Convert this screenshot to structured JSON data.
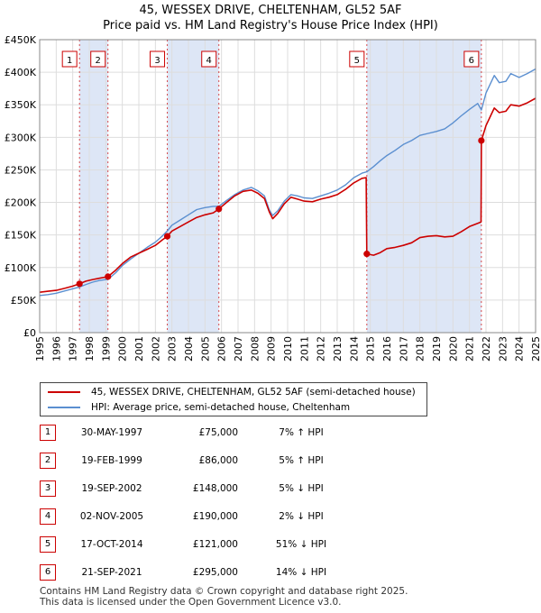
{
  "title_line1": "45, WESSEX DRIVE, CHELTENHAM, GL52 5AF",
  "title_line2": "Price paid vs. HM Land Registry's House Price Index (HPI)",
  "colors": {
    "property": "#cc0000",
    "hpi": "#5b8fd0",
    "shade": "#dde6f6",
    "grid": "#dddddd",
    "marker_border": "#cc0000"
  },
  "legend": {
    "property_label": "45, WESSEX DRIVE, CHELTENHAM, GL52 5AF (semi-detached house)",
    "hpi_label": "HPI: Average price, semi-detached house, Cheltenham"
  },
  "sales": [
    {
      "num": "1",
      "date": "30-MAY-1997",
      "price": "£75,000",
      "hpi": "7% ↑ HPI"
    },
    {
      "num": "2",
      "date": "19-FEB-1999",
      "price": "£86,000",
      "hpi": "5% ↑ HPI"
    },
    {
      "num": "3",
      "date": "19-SEP-2002",
      "price": "£148,000",
      "hpi": "5% ↓ HPI"
    },
    {
      "num": "4",
      "date": "02-NOV-2005",
      "price": "£190,000",
      "hpi": "2% ↓ HPI"
    },
    {
      "num": "5",
      "date": "17-OCT-2014",
      "price": "£121,000",
      "hpi": "51% ↓ HPI"
    },
    {
      "num": "6",
      "date": "21-SEP-2021",
      "price": "£295,000",
      "hpi": "14% ↓ HPI"
    }
  ],
  "footer_line1": "Contains HM Land Registry data © Crown copyright and database right 2025.",
  "footer_line2": "This data is licensed under the Open Government Licence v3.0.",
  "chart_data": {
    "type": "line",
    "title": "45, WESSEX DRIVE, CHELTENHAM, GL52 5AF",
    "subtitle": "Price paid vs. HM Land Registry's House Price Index (HPI)",
    "xlim": [
      1995,
      2025
    ],
    "ylim": [
      0,
      450000
    ],
    "grid": true,
    "legend_position": "below",
    "x_ticks": [
      "1995",
      "1996",
      "1997",
      "1998",
      "1999",
      "2000",
      "2001",
      "2002",
      "2003",
      "2004",
      "2005",
      "2006",
      "2007",
      "2008",
      "2009",
      "2010",
      "2011",
      "2012",
      "2013",
      "2014",
      "2015",
      "2016",
      "2017",
      "2018",
      "2019",
      "2020",
      "2021",
      "2022",
      "2023",
      "2024",
      "2025"
    ],
    "y_ticks": [
      {
        "value": 0,
        "label": "£0"
      },
      {
        "value": 50000,
        "label": "£50K"
      },
      {
        "value": 100000,
        "label": "£100K"
      },
      {
        "value": 150000,
        "label": "£150K"
      },
      {
        "value": 200000,
        "label": "£200K"
      },
      {
        "value": 250000,
        "label": "£250K"
      },
      {
        "value": 300000,
        "label": "£300K"
      },
      {
        "value": 350000,
        "label": "£350K"
      },
      {
        "value": 400000,
        "label": "£400K"
      },
      {
        "value": 450000,
        "label": "£450K"
      }
    ],
    "shaded_ranges": [
      [
        1997.41,
        1999.13
      ],
      [
        2002.72,
        2005.84
      ],
      [
        2014.79,
        2021.72
      ]
    ],
    "sale_markers": [
      {
        "label": "1",
        "x": 1997.41,
        "y": 75000
      },
      {
        "label": "2",
        "x": 1999.13,
        "y": 86000
      },
      {
        "label": "3",
        "x": 2002.72,
        "y": 148000
      },
      {
        "label": "4",
        "x": 2005.84,
        "y": 190000
      },
      {
        "label": "5",
        "x": 2014.79,
        "y": 121000
      },
      {
        "label": "6",
        "x": 2021.72,
        "y": 295000
      }
    ],
    "series": [
      {
        "name": "45, WESSEX DRIVE, CHELTENHAM, GL52 5AF (semi-detached house)",
        "points": [
          [
            1995.0,
            62000
          ],
          [
            1995.5,
            63500
          ],
          [
            1996.0,
            65000
          ],
          [
            1996.5,
            68000
          ],
          [
            1997.0,
            71500
          ],
          [
            1997.41,
            75000
          ],
          [
            1997.8,
            79000
          ],
          [
            1998.2,
            81500
          ],
          [
            1998.6,
            83500
          ],
          [
            1999.13,
            86000
          ],
          [
            1999.6,
            96000
          ],
          [
            2000.0,
            106000
          ],
          [
            2000.5,
            116000
          ],
          [
            2001.0,
            122000
          ],
          [
            2001.5,
            128000
          ],
          [
            2002.0,
            134000
          ],
          [
            2002.4,
            142000
          ],
          [
            2002.72,
            148000
          ],
          [
            2003.0,
            156000
          ],
          [
            2003.5,
            163000
          ],
          [
            2004.0,
            170000
          ],
          [
            2004.5,
            177000
          ],
          [
            2005.0,
            181000
          ],
          [
            2005.5,
            184000
          ],
          [
            2005.84,
            190000
          ],
          [
            2006.3,
            200000
          ],
          [
            2006.8,
            210000
          ],
          [
            2007.3,
            217000
          ],
          [
            2007.8,
            219000
          ],
          [
            2008.2,
            214000
          ],
          [
            2008.6,
            206000
          ],
          [
            2008.9,
            185000
          ],
          [
            2009.1,
            175000
          ],
          [
            2009.4,
            183000
          ],
          [
            2009.8,
            198000
          ],
          [
            2010.2,
            208000
          ],
          [
            2010.6,
            205000
          ],
          [
            2011.0,
            202000
          ],
          [
            2011.5,
            201000
          ],
          [
            2012.0,
            205000
          ],
          [
            2012.5,
            208000
          ],
          [
            2013.0,
            212000
          ],
          [
            2013.5,
            220000
          ],
          [
            2014.0,
            230000
          ],
          [
            2014.5,
            237000
          ],
          [
            2014.75,
            238000
          ],
          [
            2014.79,
            121000
          ],
          [
            2015.2,
            119000
          ],
          [
            2015.6,
            123000
          ],
          [
            2016.0,
            129000
          ],
          [
            2016.5,
            131000
          ],
          [
            2017.0,
            134000
          ],
          [
            2017.5,
            138000
          ],
          [
            2018.0,
            146000
          ],
          [
            2018.5,
            148000
          ],
          [
            2019.0,
            149000
          ],
          [
            2019.5,
            147000
          ],
          [
            2020.0,
            148000
          ],
          [
            2020.5,
            155000
          ],
          [
            2021.0,
            163000
          ],
          [
            2021.5,
            168000
          ],
          [
            2021.7,
            170000
          ],
          [
            2021.72,
            295000
          ],
          [
            2022.0,
            318000
          ],
          [
            2022.5,
            345000
          ],
          [
            2022.8,
            338000
          ],
          [
            2023.2,
            340000
          ],
          [
            2023.5,
            350000
          ],
          [
            2024.0,
            348000
          ],
          [
            2024.5,
            353000
          ],
          [
            2025.0,
            360000
          ]
        ]
      },
      {
        "name": "HPI: Average price, semi-detached house, Cheltenham",
        "points": [
          [
            1995.0,
            57000
          ],
          [
            1995.5,
            58500
          ],
          [
            1996.0,
            60500
          ],
          [
            1996.5,
            64000
          ],
          [
            1997.0,
            67500
          ],
          [
            1997.41,
            70000
          ],
          [
            1997.8,
            74000
          ],
          [
            1998.2,
            77500
          ],
          [
            1998.6,
            80000
          ],
          [
            1999.13,
            82000
          ],
          [
            1999.6,
            92000
          ],
          [
            2000.0,
            103000
          ],
          [
            2000.5,
            113000
          ],
          [
            2001.0,
            122000
          ],
          [
            2001.5,
            131000
          ],
          [
            2002.0,
            139000
          ],
          [
            2002.4,
            148000
          ],
          [
            2002.72,
            156000
          ],
          [
            2003.0,
            165000
          ],
          [
            2003.5,
            173000
          ],
          [
            2004.0,
            181000
          ],
          [
            2004.5,
            189000
          ],
          [
            2005.0,
            192000
          ],
          [
            2005.5,
            194000
          ],
          [
            2005.84,
            194000
          ],
          [
            2006.3,
            203000
          ],
          [
            2006.8,
            212000
          ],
          [
            2007.3,
            219000
          ],
          [
            2007.8,
            223000
          ],
          [
            2008.2,
            218000
          ],
          [
            2008.6,
            210000
          ],
          [
            2008.9,
            188000
          ],
          [
            2009.1,
            180000
          ],
          [
            2009.4,
            187000
          ],
          [
            2009.8,
            202000
          ],
          [
            2010.2,
            212000
          ],
          [
            2010.6,
            210000
          ],
          [
            2011.0,
            207000
          ],
          [
            2011.5,
            206000
          ],
          [
            2012.0,
            210000
          ],
          [
            2012.5,
            214000
          ],
          [
            2013.0,
            219000
          ],
          [
            2013.5,
            227000
          ],
          [
            2014.0,
            238000
          ],
          [
            2014.5,
            245000
          ],
          [
            2014.79,
            247000
          ],
          [
            2015.2,
            255000
          ],
          [
            2015.6,
            264000
          ],
          [
            2016.0,
            272000
          ],
          [
            2016.5,
            280000
          ],
          [
            2017.0,
            289000
          ],
          [
            2017.5,
            295000
          ],
          [
            2018.0,
            303000
          ],
          [
            2018.5,
            306000
          ],
          [
            2019.0,
            309000
          ],
          [
            2019.5,
            313000
          ],
          [
            2020.0,
            322000
          ],
          [
            2020.5,
            333000
          ],
          [
            2021.0,
            343000
          ],
          [
            2021.5,
            352000
          ],
          [
            2021.72,
            342000
          ],
          [
            2022.0,
            368000
          ],
          [
            2022.5,
            395000
          ],
          [
            2022.8,
            384000
          ],
          [
            2023.2,
            386000
          ],
          [
            2023.5,
            398000
          ],
          [
            2024.0,
            392000
          ],
          [
            2024.5,
            398000
          ],
          [
            2025.0,
            405000
          ]
        ]
      }
    ]
  }
}
